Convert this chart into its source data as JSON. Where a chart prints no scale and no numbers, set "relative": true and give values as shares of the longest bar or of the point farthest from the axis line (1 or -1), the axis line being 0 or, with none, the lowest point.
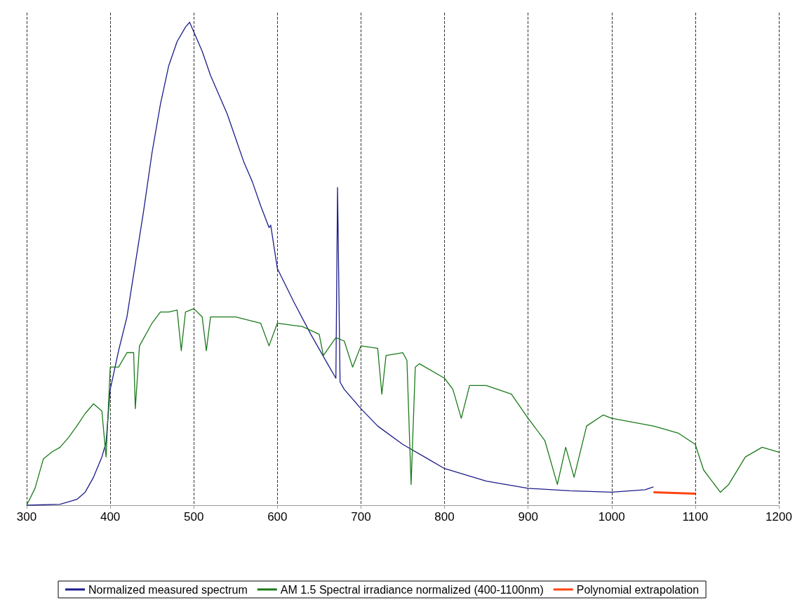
{
  "chart_data": {
    "type": "line",
    "relative": true,
    "xlim": [
      300,
      1200
    ],
    "xticks": [
      300,
      400,
      500,
      600,
      700,
      800,
      900,
      1000,
      1100,
      1200
    ],
    "grid": "x",
    "legend": "bottom",
    "marker": "none",
    "line_style": "solid",
    "series": [
      {
        "name": "Normalized measured spectrum",
        "color": "#1c1c8a",
        "x": [
          300,
          340,
          360,
          370,
          380,
          390,
          395,
          400,
          410,
          420,
          430,
          440,
          450,
          460,
          470,
          480,
          490,
          495,
          500,
          510,
          520,
          530,
          540,
          550,
          560,
          570,
          580,
          590,
          592,
          600,
          620,
          640,
          660,
          670,
          672,
          675,
          680,
          700,
          720,
          750,
          780,
          800,
          850,
          900,
          950,
          1000,
          1040,
          1050
        ],
        "values": [
          0,
          0.002,
          0.012,
          0.027,
          0.058,
          0.1,
          0.13,
          0.24,
          0.32,
          0.39,
          0.5,
          0.61,
          0.73,
          0.83,
          0.91,
          0.96,
          0.99,
          1,
          0.98,
          0.94,
          0.89,
          0.85,
          0.81,
          0.76,
          0.71,
          0.67,
          0.62,
          0.575,
          0.58,
          0.49,
          0.42,
          0.354,
          0.293,
          0.263,
          0.658,
          0.255,
          0.24,
          0.2,
          0.164,
          0.126,
          0.096,
          0.076,
          0.05,
          0.035,
          0.03,
          0.027,
          0.032,
          0.038
        ]
      },
      {
        "name": "AM 1.5 Spectral irradiance normalized (400-1100nm)",
        "color": "#1a7a1a",
        "x": [
          300,
          310,
          320,
          330,
          340,
          350,
          360,
          370,
          380,
          390,
          395,
          400,
          410,
          420,
          428,
          430,
          435,
          450,
          460,
          470,
          480,
          485,
          490,
          500,
          510,
          515,
          520,
          550,
          580,
          590,
          600,
          630,
          650,
          655,
          670,
          680,
          690,
          700,
          720,
          725,
          730,
          750,
          755,
          760,
          765,
          770,
          800,
          810,
          820,
          830,
          850,
          880,
          900,
          920,
          935,
          945,
          955,
          970,
          990,
          1000,
          1050,
          1080,
          1100,
          1110,
          1130,
          1140,
          1160,
          1180,
          1200
        ],
        "values": [
          0,
          0.035,
          0.096,
          0.11,
          0.12,
          0.14,
          0.164,
          0.19,
          0.21,
          0.195,
          0.1,
          0.286,
          0.286,
          0.316,
          0.316,
          0.2,
          0.33,
          0.377,
          0.4,
          0.4,
          0.404,
          0.32,
          0.4,
          0.407,
          0.39,
          0.32,
          0.39,
          0.39,
          0.377,
          0.33,
          0.377,
          0.37,
          0.354,
          0.31,
          0.347,
          0.34,
          0.286,
          0.33,
          0.325,
          0.23,
          0.31,
          0.316,
          0.3,
          0.043,
          0.286,
          0.293,
          0.263,
          0.24,
          0.18,
          0.248,
          0.248,
          0.23,
          0.18,
          0.134,
          0.043,
          0.12,
          0.058,
          0.164,
          0.187,
          0.18,
          0.164,
          0.149,
          0.126,
          0.073,
          0.027,
          0.043,
          0.1,
          0.12,
          0.11
        ]
      },
      {
        "name": "Polynomial extrapolation",
        "color": "#ff4411",
        "x": [
          1050,
          1100
        ],
        "values": [
          0.027,
          0.024
        ]
      }
    ]
  }
}
